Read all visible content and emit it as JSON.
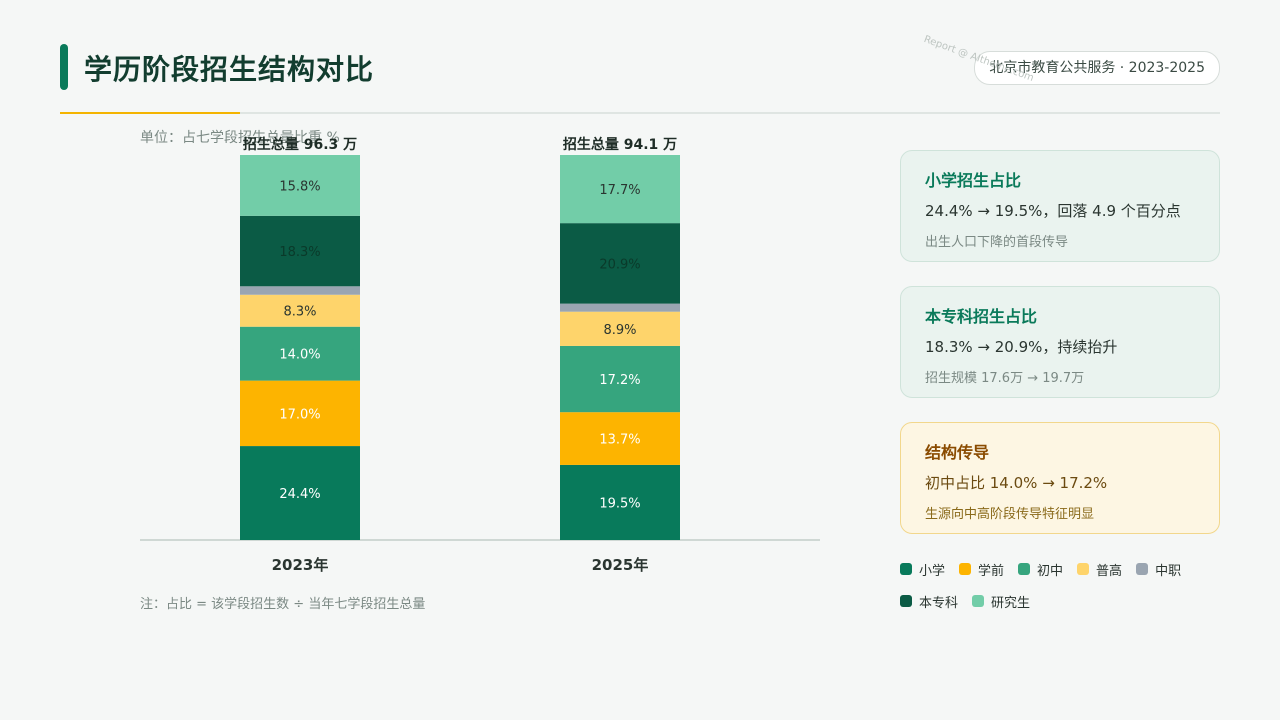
{
  "header": {
    "title": "学历阶段招生结构对比",
    "badge": "北京市教育公共服务 · 2023-2025",
    "watermark": "Report @ AIthome.com"
  },
  "unit_label": "单位：占七学段招生总量比重 %",
  "footnote": "注：占比 = 该学段招生数 ÷ 当年七学段招生总量",
  "colors": {
    "accent": "#0a7a5a",
    "highlight": "#f4b400",
    "小学": "#087a5b",
    "学前": "#fdb400",
    "初中": "#36a57e",
    "普高": "#fed46b",
    "中职": "#9aa5b1",
    "本专科": "#0b5b45",
    "研究生": "#72cda8"
  },
  "chart_data": {
    "type": "bar",
    "stacked": true,
    "categories": [
      "2023年",
      "2025年"
    ],
    "totals": [
      "招生总量 96.3 万",
      "招生总量 94.1 万"
    ],
    "ylim": [
      0,
      100
    ],
    "grid": false,
    "legend_position": "bottom-right",
    "series": [
      {
        "name": "小学",
        "values": [
          24.4,
          19.5
        ],
        "labels": [
          "24.4%",
          "19.5%"
        ]
      },
      {
        "name": "学前",
        "values": [
          17.0,
          13.7
        ],
        "labels": [
          "17.0%",
          "13.7%"
        ]
      },
      {
        "name": "初中",
        "values": [
          14.0,
          17.2
        ],
        "labels": [
          "14.0%",
          "17.2%"
        ]
      },
      {
        "name": "普高",
        "values": [
          8.3,
          8.9
        ],
        "labels": [
          "8.3%",
          "8.9%"
        ]
      },
      {
        "name": "中职",
        "values": [
          2.2,
          2.1
        ],
        "labels": [
          "",
          ""
        ]
      },
      {
        "name": "本专科",
        "values": [
          18.3,
          20.9
        ],
        "labels": [
          "18.3%",
          "20.9%"
        ]
      },
      {
        "name": "研究生",
        "values": [
          15.8,
          17.7
        ],
        "labels": [
          "15.8%",
          "17.7%"
        ]
      }
    ]
  },
  "cards": [
    {
      "title": "小学招生占比",
      "main": "24.4% → 19.5%，回落 4.9 个百分点",
      "sub": "出生人口下降的首段传导",
      "style": "normal"
    },
    {
      "title": "本专科招生占比",
      "main": "18.3% → 20.9%，持续抬升",
      "sub": "招生规模 17.6万 → 19.7万",
      "style": "normal"
    },
    {
      "title": "结构传导",
      "main": "初中占比 14.0% → 17.2%",
      "sub": "生源向中高阶段传导特征明显",
      "style": "warn"
    }
  ],
  "legend": [
    "小学",
    "学前",
    "初中",
    "普高",
    "中职",
    "本专科",
    "研究生"
  ]
}
